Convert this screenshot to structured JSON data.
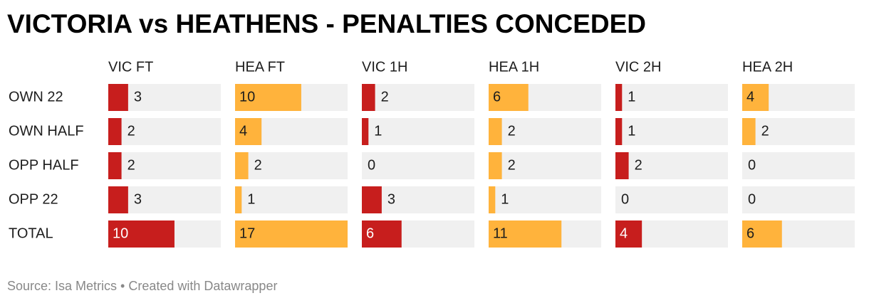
{
  "chart_data": {
    "type": "bar-table",
    "title": "VICTORIA vs HEATHENS - PENALTIES CONCEDED",
    "categories": [
      "OWN 22",
      "OWN HALF",
      "OPP HALF",
      "OPP 22",
      "TOTAL"
    ],
    "series": [
      {
        "name": "VIC FT",
        "color": "#c71e1d",
        "values": [
          3,
          2,
          2,
          3,
          10
        ]
      },
      {
        "name": "HEA FT",
        "color": "#ffb33c",
        "values": [
          10,
          4,
          2,
          1,
          17
        ]
      },
      {
        "name": "VIC 1H",
        "color": "#c71e1d",
        "values": [
          2,
          1,
          0,
          3,
          6
        ]
      },
      {
        "name": "HEA 1H",
        "color": "#ffb33c",
        "values": [
          6,
          2,
          2,
          1,
          11
        ]
      },
      {
        "name": "VIC 2H",
        "color": "#c71e1d",
        "values": [
          1,
          1,
          2,
          0,
          4
        ]
      },
      {
        "name": "HEA 2H",
        "color": "#ffb33c",
        "values": [
          4,
          2,
          0,
          0,
          6
        ]
      }
    ],
    "footer": "Source: Isa Metrics • Created with Datawrapper"
  }
}
